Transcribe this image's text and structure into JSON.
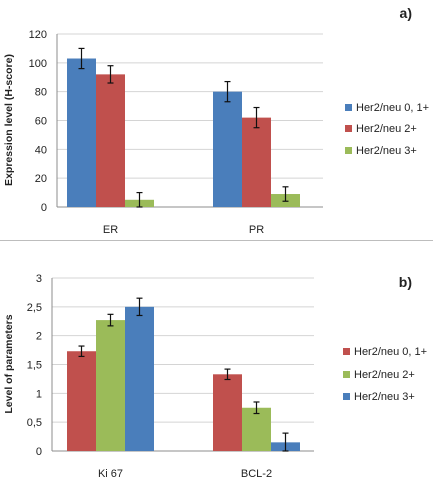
{
  "chart_data": [
    {
      "type": "bar",
      "panel_label": "a)",
      "ylabel": "Expression level (H-score)",
      "categories": [
        "ER",
        "PR"
      ],
      "ylim": [
        0,
        120
      ],
      "yticks": [
        0,
        20,
        40,
        60,
        80,
        100,
        120
      ],
      "grid": true,
      "legend": "right",
      "series": [
        {
          "name": "Her2/neu 0, 1+",
          "color": "#4a7ebb",
          "values": [
            103,
            80
          ],
          "errors": [
            7,
            7
          ]
        },
        {
          "name": "Her2/neu 2+",
          "color": "#c0504d",
          "values": [
            92,
            62
          ],
          "errors": [
            6,
            7
          ]
        },
        {
          "name": "Her2/neu 3+",
          "color": "#9bbb59",
          "values": [
            5,
            9
          ],
          "errors": [
            5,
            5
          ]
        }
      ]
    },
    {
      "type": "bar",
      "panel_label": "b)",
      "ylabel": "Level of parameters",
      "categories": [
        "Ki 67",
        "BCL-2"
      ],
      "ylim": [
        0,
        3
      ],
      "yticks": [
        "0",
        "0,5",
        "1",
        "1,5",
        "2",
        "2,5",
        "3"
      ],
      "grid": true,
      "legend": "right",
      "series": [
        {
          "name": "Her2/neu 0, 1+",
          "color": "#c0504d",
          "values": [
            1.73,
            1.33
          ],
          "errors": [
            0.09,
            0.09
          ]
        },
        {
          "name": "Her2/neu 2+",
          "color": "#9bbb59",
          "values": [
            2.27,
            0.75
          ],
          "errors": [
            0.1,
            0.1
          ]
        },
        {
          "name": "Her2/neu 3+",
          "color": "#4a7ebb",
          "values": [
            2.5,
            0.15
          ],
          "errors": [
            0.15,
            0.16
          ]
        }
      ]
    }
  ]
}
